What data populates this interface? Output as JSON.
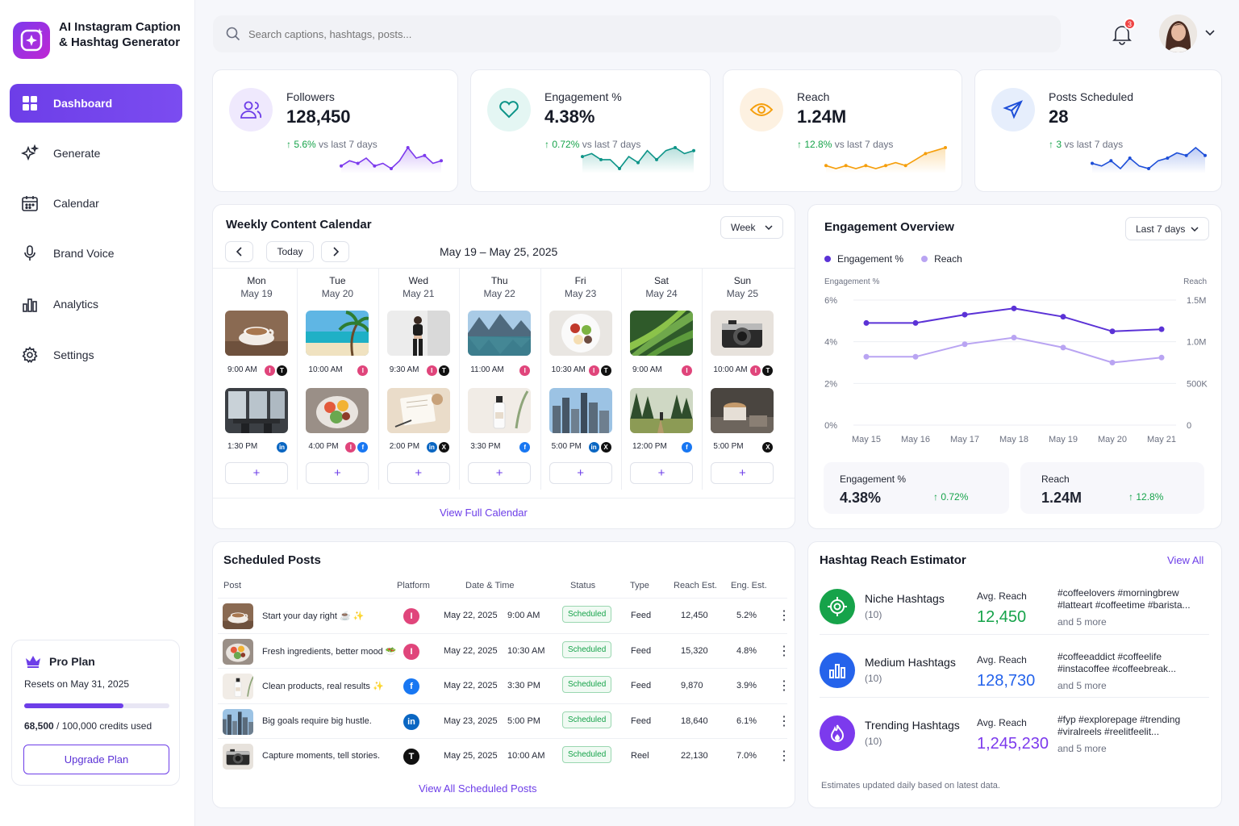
{
  "app": {
    "title": "AI Instagram Caption & Hashtag Generator"
  },
  "sidebar": {
    "items": [
      {
        "label": "Dashboard",
        "icon": "grid-icon",
        "active": true
      },
      {
        "label": "Generate",
        "icon": "sparkle-icon"
      },
      {
        "label": "Calendar",
        "icon": "calendar-icon"
      },
      {
        "label": "Brand Voice",
        "icon": "microphone-icon"
      },
      {
        "label": "Analytics",
        "icon": "bar-chart-icon"
      },
      {
        "label": "Settings",
        "icon": "gear-icon"
      }
    ],
    "plan": {
      "name": "Pro Plan",
      "resets": "Resets on May 31, 2025",
      "used": "68,500",
      "total": " / 100,000 credits used",
      "progress": 0.685,
      "button": "Upgrade Plan"
    }
  },
  "header": {
    "search_placeholder": "Search captions, hashtags, posts...",
    "notifications": "3"
  },
  "stats": [
    {
      "label": "Followers",
      "value": "128,450",
      "change": "5.6%",
      "suffix": "vs last 7 days",
      "color": "#7c3aed",
      "series": [
        5,
        7,
        6,
        8,
        5,
        6,
        4,
        7,
        12,
        8,
        9,
        6,
        7
      ]
    },
    {
      "label": "Engagement %",
      "value": "4.38%",
      "change": "0.72%",
      "suffix": "vs last 7 days",
      "color": "#0d9488",
      "series": [
        7,
        8,
        6,
        6,
        3,
        7,
        5,
        9,
        6,
        9,
        10,
        8,
        9
      ]
    },
    {
      "label": "Reach",
      "value": "1.24M",
      "change": "12.8%",
      "suffix": "vs last 7 days",
      "color": "#f59e0b",
      "series": [
        4,
        3,
        4,
        3,
        4,
        3,
        4,
        5,
        4,
        6,
        8,
        9,
        10
      ]
    },
    {
      "label": "Posts Scheduled",
      "value": "28",
      "change": "3",
      "suffix": "vs last 7 days",
      "color": "#1d4ed8",
      "series": [
        5,
        4,
        6,
        3,
        7,
        4,
        3,
        6,
        7,
        9,
        8,
        11,
        8
      ]
    }
  ],
  "calendar": {
    "title": "Weekly Content Calendar",
    "view": "Week",
    "today": "Today",
    "range": "May 19 – May 25, 2025",
    "footer": "View Full Calendar",
    "days": [
      {
        "name": "Mon",
        "date": "May 19",
        "posts": [
          {
            "time": "9:00 AM",
            "platforms": [
              "instagram",
              "threads"
            ],
            "img": "coffee"
          },
          {
            "time": "1:30 PM",
            "platforms": [
              "linkedin"
            ],
            "img": "office"
          }
        ]
      },
      {
        "name": "Tue",
        "date": "May 20",
        "posts": [
          {
            "time": "10:00 AM",
            "platforms": [
              "instagram"
            ],
            "img": "beach"
          },
          {
            "time": "4:00 PM",
            "platforms": [
              "instagram",
              "facebook"
            ],
            "img": "bowl"
          }
        ]
      },
      {
        "name": "Wed",
        "date": "May 21",
        "posts": [
          {
            "time": "9:30 AM",
            "platforms": [
              "instagram",
              "threads"
            ],
            "img": "fitness"
          },
          {
            "time": "2:00 PM",
            "platforms": [
              "linkedin",
              "x"
            ],
            "img": "notebook"
          }
        ]
      },
      {
        "name": "Thu",
        "date": "May 22",
        "posts": [
          {
            "time": "11:00 AM",
            "platforms": [
              "instagram"
            ],
            "img": "lake"
          },
          {
            "time": "3:30 PM",
            "platforms": [
              "facebook"
            ],
            "img": "bottle"
          }
        ]
      },
      {
        "name": "Fri",
        "date": "May 23",
        "posts": [
          {
            "time": "10:30 AM",
            "platforms": [
              "instagram",
              "threads"
            ],
            "img": "salad"
          },
          {
            "time": "5:00 PM",
            "platforms": [
              "linkedin",
              "x"
            ],
            "img": "city"
          }
        ]
      },
      {
        "name": "Sat",
        "date": "May 24",
        "posts": [
          {
            "time": "9:00 AM",
            "platforms": [
              "instagram"
            ],
            "img": "leaf"
          },
          {
            "time": "12:00 PM",
            "platforms": [
              "facebook"
            ],
            "img": "forest"
          }
        ]
      },
      {
        "name": "Sun",
        "date": "May 25",
        "posts": [
          {
            "time": "10:00 AM",
            "platforms": [
              "instagram",
              "threads"
            ],
            "img": "camera"
          },
          {
            "time": "5:00 PM",
            "platforms": [
              "x"
            ],
            "img": "latte"
          }
        ]
      }
    ]
  },
  "engagement": {
    "title": "Engagement Overview",
    "range": "Last 7 days",
    "legend": [
      "Engagement %",
      "Reach"
    ],
    "left_axis_label": "Engagement %",
    "right_axis_label": "Reach",
    "summary": [
      {
        "label": "Engagement %",
        "value": "4.38%",
        "change": "0.72%"
      },
      {
        "label": "Reach",
        "value": "1.24M",
        "change": "12.8%"
      }
    ]
  },
  "chart_data": {
    "type": "line",
    "categories": [
      "May 15",
      "May 16",
      "May 17",
      "May 18",
      "May 19",
      "May 20",
      "May 21"
    ],
    "series": [
      {
        "name": "Engagement %",
        "values": [
          4.9,
          4.9,
          5.3,
          5.6,
          5.2,
          4.5,
          4.6
        ],
        "color": "#5b32d6"
      },
      {
        "name": "Reach",
        "values": [
          0.82,
          0.82,
          0.97,
          1.05,
          0.93,
          0.75,
          0.81
        ],
        "color": "#b9a4f2"
      }
    ],
    "yticks_left": [
      "6%",
      "4%",
      "2%",
      "0%"
    ],
    "yticks_right": [
      "1.5M",
      "1.0M",
      "500K",
      "0"
    ],
    "ylim_left": [
      0,
      6
    ],
    "ylim_right": [
      0,
      1.5
    ]
  },
  "scheduled": {
    "title": "Scheduled Posts",
    "headers": [
      "Post",
      "Platform",
      "Date & Time",
      "Status",
      "Type",
      "Reach Est.",
      "Eng. Est."
    ],
    "footer": "View All Scheduled Posts",
    "rows": [
      {
        "post": "Start your day right ☕ ✨",
        "platform": "instagram",
        "date": "May 22, 2025",
        "time": "9:00 AM",
        "status": "Scheduled",
        "type": "Feed",
        "reach": "12,450",
        "eng": "5.2%",
        "img": "coffee"
      },
      {
        "post": "Fresh ingredients, better mood 🥗",
        "platform": "instagram",
        "date": "May 22, 2025",
        "time": "10:30 AM",
        "status": "Scheduled",
        "type": "Feed",
        "reach": "15,320",
        "eng": "4.8%",
        "img": "bowl"
      },
      {
        "post": "Clean products, real results ✨",
        "platform": "facebook",
        "date": "May 22, 2025",
        "time": "3:30 PM",
        "status": "Scheduled",
        "type": "Feed",
        "reach": "9,870",
        "eng": "3.9%",
        "img": "bottle"
      },
      {
        "post": "Big goals require big hustle.",
        "platform": "linkedin",
        "date": "May 23, 2025",
        "time": "5:00 PM",
        "status": "Scheduled",
        "type": "Feed",
        "reach": "18,640",
        "eng": "6.1%",
        "img": "city"
      },
      {
        "post": "Capture moments, tell stories.",
        "platform": "threads",
        "date": "May 25, 2025",
        "time": "10:00 AM",
        "status": "Scheduled",
        "type": "Reel",
        "reach": "22,130",
        "eng": "7.0%",
        "img": "camera"
      }
    ]
  },
  "hashtags": {
    "title": "Hashtag Reach Estimator",
    "view_all": "View All",
    "footer": "Estimates updated daily based on latest data.",
    "groups": [
      {
        "name": "Niche Hashtags",
        "count": "(10)",
        "avg_label": "Avg. Reach",
        "avg": "12,450",
        "tags1": "#coffeelovers #morningbrew",
        "tags2": "#latteart #coffeetime #barista...",
        "more": "and 5 more",
        "color": "#16a34a",
        "icon": "target-icon"
      },
      {
        "name": "Medium Hashtags",
        "count": "(10)",
        "avg_label": "Avg. Reach",
        "avg": "128,730",
        "tags1": "#coffeeaddict #coffeelife",
        "tags2": "#instacoffee #coffeebreak...",
        "more": "and 5 more",
        "color": "#2563eb",
        "icon": "bar-chart-icon"
      },
      {
        "name": "Trending Hashtags",
        "count": "(10)",
        "avg_label": "Avg. Reach",
        "avg": "1,245,230",
        "tags1": "#fyp #explorepage #trending",
        "tags2": "#viralreels #reelitfeelit...",
        "more": "and 5 more",
        "color": "#7c3aed",
        "icon": "flame-icon"
      }
    ]
  }
}
